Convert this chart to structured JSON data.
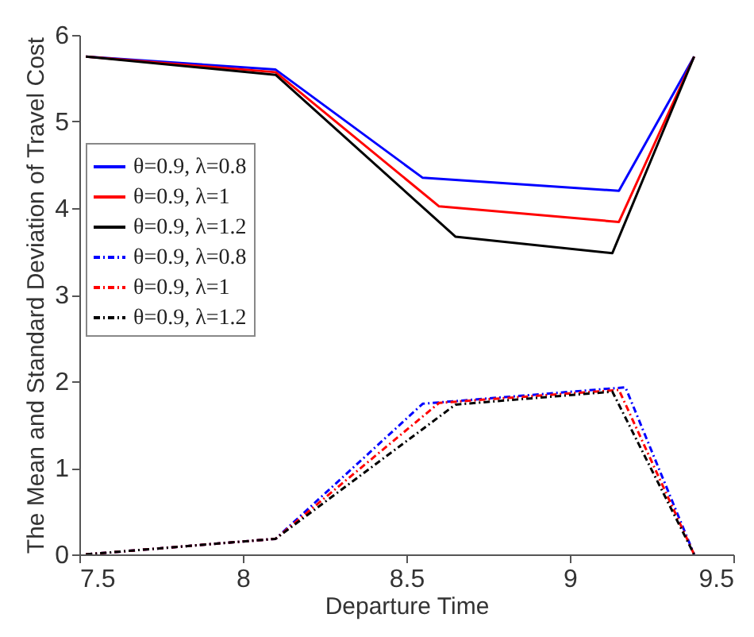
{
  "chart_data": {
    "type": "line",
    "xlabel": "Departure Time",
    "ylabel": "The Mean and Standard Deviation of Travel Cost",
    "xlim": [
      7.5,
      9.5
    ],
    "xticks": [
      7.5,
      8,
      8.5,
      9,
      9.5
    ],
    "ylim": [
      0,
      6
    ],
    "yticks": [
      0,
      1,
      2,
      3,
      4,
      5,
      6
    ],
    "legend": "top left",
    "grid": false,
    "series": [
      {
        "name": "θ=0.9, λ=0.8",
        "color": "#0000ff",
        "line_style": "solid",
        "x": [
          7.52,
          8.1,
          8.55,
          9.15,
          9.38
        ],
        "values": [
          5.75,
          5.6,
          4.35,
          4.2,
          5.75
        ]
      },
      {
        "name": "θ=0.9, λ=1",
        "color": "#ff0000",
        "line_style": "solid",
        "x": [
          7.52,
          8.1,
          8.6,
          9.15,
          9.38
        ],
        "values": [
          5.75,
          5.57,
          4.02,
          3.84,
          5.75
        ]
      },
      {
        "name": "θ=0.9, λ=1.2",
        "color": "#000000",
        "line_style": "solid",
        "x": [
          7.52,
          8.1,
          8.65,
          9.13,
          9.38
        ],
        "values": [
          5.75,
          5.54,
          3.67,
          3.48,
          5.75
        ]
      },
      {
        "name": "θ=0.9, λ=0.8",
        "color": "#0000ff",
        "line_style": "dashed",
        "x": [
          7.52,
          8.1,
          8.55,
          9.17,
          9.38
        ],
        "values": [
          0,
          0.18,
          1.74,
          1.93,
          0
        ]
      },
      {
        "name": "θ=0.9, λ=1",
        "color": "#ff0000",
        "line_style": "dashed",
        "x": [
          7.52,
          8.1,
          8.6,
          9.15,
          9.38
        ],
        "values": [
          0,
          0.18,
          1.75,
          1.9,
          0
        ]
      },
      {
        "name": "θ=0.9, λ=1.2",
        "color": "#000000",
        "line_style": "dashed",
        "x": [
          7.52,
          8.1,
          8.65,
          9.13,
          9.38
        ],
        "values": [
          0,
          0.18,
          1.73,
          1.88,
          0
        ]
      }
    ]
  }
}
